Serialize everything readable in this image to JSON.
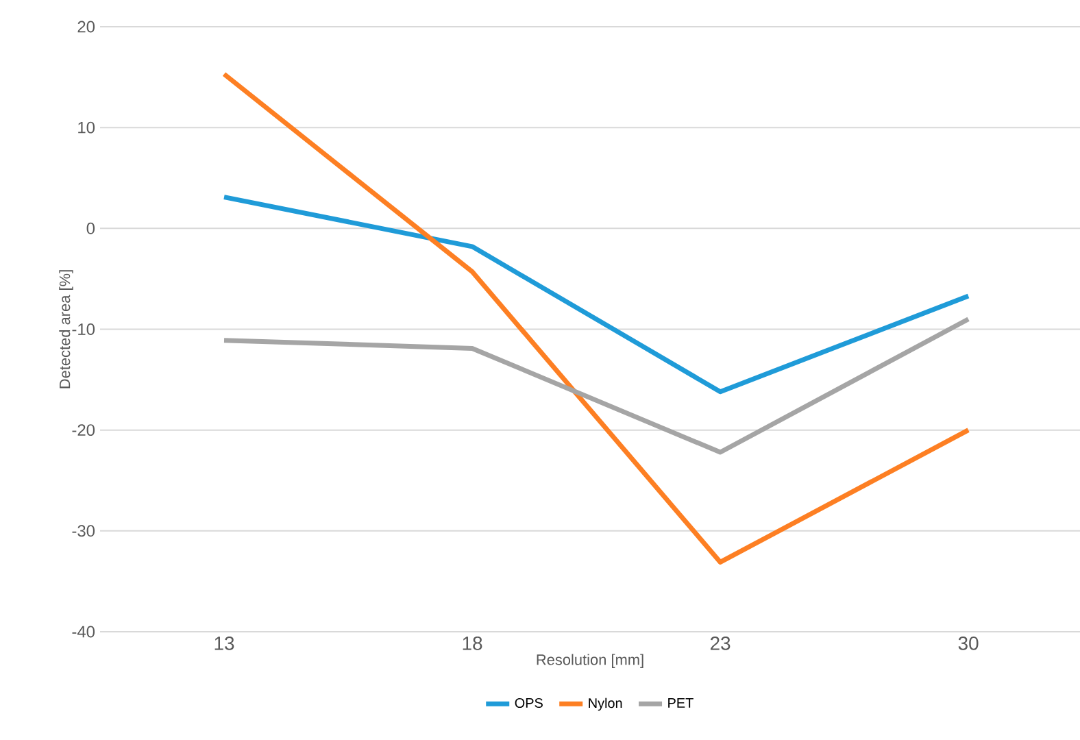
{
  "chart_data": {
    "type": "line",
    "xlabel": "Resolution [mm]",
    "ylabel": "Detected area [%]",
    "categories": [
      "13",
      "18",
      "23",
      "30"
    ],
    "series": [
      {
        "name": "OPS",
        "color": "#1f9bd8",
        "values": [
          3.1,
          -1.8,
          -16.2,
          -6.7
        ]
      },
      {
        "name": "Nylon",
        "color": "#fd7f23",
        "values": [
          15.3,
          -4.3,
          -33.1,
          -20.0
        ]
      },
      {
        "name": "PET",
        "color": "#a5a5a5",
        "values": [
          -11.1,
          -11.9,
          -22.2,
          -9.0
        ]
      }
    ],
    "ylim": [
      -40,
      20
    ],
    "yticks": [
      -40,
      -30,
      -20,
      -10,
      0,
      10,
      20
    ],
    "grid": "y",
    "legend": "bottom",
    "marker": "none",
    "line_style": "solid"
  }
}
